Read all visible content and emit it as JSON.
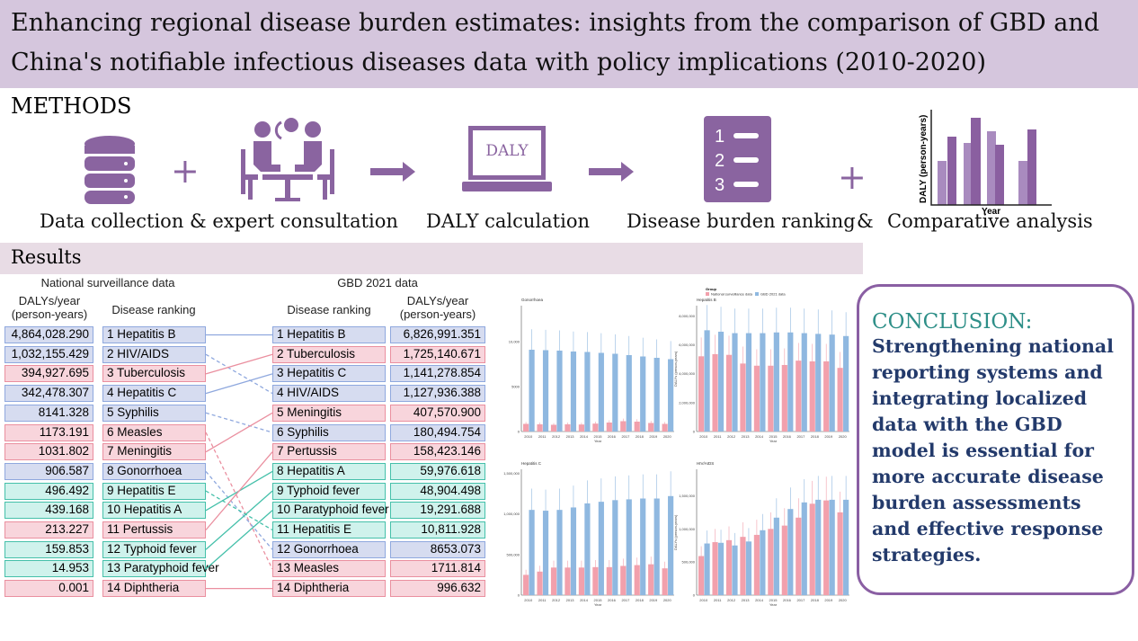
{
  "title": "Enhancing regional disease burden estimates: insights from the comparison of GBD and China's notifiable infectious diseases data with policy implications (2010-2020)",
  "methods": {
    "heading": "METHODS",
    "plus": "+",
    "amp": "&",
    "laptop_text": "DALY",
    "rank_numbers": [
      "1",
      "2",
      "3"
    ],
    "mini_chart": {
      "ylabel": "DALY (person-years)",
      "xlabel": "Year"
    },
    "steps": [
      "Data collection & expert consultation",
      "DALY calculation",
      "Disease burden ranking",
      "Comparative analysis"
    ]
  },
  "results": {
    "heading": "Results",
    "national_title": "National surveillance data",
    "gbd_title": "GBD 2021 data",
    "col_dalys": "DALYs/year",
    "col_dalys_unit": "(person-years)",
    "col_rank": "Disease ranking",
    "national": [
      {
        "rank": "1",
        "disease": "Hepatitis B",
        "value": "4,864,028.290",
        "group": "blue"
      },
      {
        "rank": "2",
        "disease": "HIV/AIDS",
        "value": "1,032,155.429",
        "group": "blue"
      },
      {
        "rank": "3",
        "disease": "Tuberculosis",
        "value": "394,927.695",
        "group": "pink"
      },
      {
        "rank": "4",
        "disease": "Hepatitis C",
        "value": "342,478.307",
        "group": "blue"
      },
      {
        "rank": "5",
        "disease": "Syphilis",
        "value": "8141.328",
        "group": "blue"
      },
      {
        "rank": "6",
        "disease": "Measles",
        "value": "1173.191",
        "group": "pink"
      },
      {
        "rank": "7",
        "disease": "Meningitis",
        "value": "1031.802",
        "group": "pink"
      },
      {
        "rank": "8",
        "disease": "Gonorrhoea",
        "value": "906.587",
        "group": "blue"
      },
      {
        "rank": "9",
        "disease": "Hepatitis E",
        "value": "496.492",
        "group": "teal"
      },
      {
        "rank": "10",
        "disease": "Hepatitis A",
        "value": "439.168",
        "group": "teal"
      },
      {
        "rank": "11",
        "disease": "Pertussis",
        "value": "213.227",
        "group": "pink"
      },
      {
        "rank": "12",
        "disease": "Typhoid fever",
        "value": "159.853",
        "group": "teal"
      },
      {
        "rank": "13",
        "disease": "Paratyphoid fever",
        "value": "14.953",
        "group": "teal"
      },
      {
        "rank": "14",
        "disease": "Diphtheria",
        "value": "0.001",
        "group": "pink"
      }
    ],
    "gbd": [
      {
        "rank": "1",
        "disease": "Hepatitis B",
        "value": "6,826,991.351",
        "group": "blue"
      },
      {
        "rank": "2",
        "disease": "Tuberculosis",
        "value": "1,725,140.671",
        "group": "pink"
      },
      {
        "rank": "3",
        "disease": "Hepatitis C",
        "value": "1,141,278.854",
        "group": "blue"
      },
      {
        "rank": "4",
        "disease": "HIV/AIDS",
        "value": "1,127,936.388",
        "group": "blue"
      },
      {
        "rank": "5",
        "disease": "Meningitis",
        "value": "407,570.900",
        "group": "pink"
      },
      {
        "rank": "6",
        "disease": "Syphilis",
        "value": "180,494.754",
        "group": "blue"
      },
      {
        "rank": "7",
        "disease": "Pertussis",
        "value": "158,423.146",
        "group": "pink"
      },
      {
        "rank": "8",
        "disease": "Hepatitis A",
        "value": "59,976.618",
        "group": "teal"
      },
      {
        "rank": "9",
        "disease": "Typhoid fever",
        "value": "48,904.498",
        "group": "teal"
      },
      {
        "rank": "10",
        "disease": "Paratyphoid fever",
        "value": "19,291.688",
        "group": "teal"
      },
      {
        "rank": "11",
        "disease": "Hepatitis E",
        "value": "10,811.928",
        "group": "teal"
      },
      {
        "rank": "12",
        "disease": "Gonorrhoea",
        "value": "8653.073",
        "group": "blue"
      },
      {
        "rank": "13",
        "disease": "Measles",
        "value": "1711.814",
        "group": "pink"
      },
      {
        "rank": "14",
        "disease": "Diphtheria",
        "value": "996.632",
        "group": "pink"
      }
    ]
  },
  "colors": {
    "blue": "#8fa8de",
    "pink": "#ea8f9f",
    "teal": "#45c0aa",
    "purple": "#8a64a0",
    "national_bar": "#f2a0ac",
    "gbd_bar": "#8fb8e0"
  },
  "chart_data": [
    {
      "type": "bar",
      "title": "Gonorrhoea",
      "xlabel": "Year",
      "ylabel": "DALYs (person-years)",
      "legend_title": "Group",
      "legend": [
        "National surveillance data",
        "GBD 2021 data"
      ],
      "legend_placement": "top-right",
      "x": [
        "2010",
        "2011",
        "2012",
        "2013",
        "2014",
        "2015",
        "2016",
        "2017",
        "2018",
        "2019",
        "2020"
      ],
      "ylim": [
        0,
        14000
      ],
      "yticks": [
        "0",
        "5000",
        "10,000"
      ],
      "ytick_values": [
        0,
        5000,
        10000
      ],
      "series": [
        {
          "name": "National surveillance data",
          "values": [
            850,
            800,
            750,
            800,
            780,
            880,
            1000,
            1150,
            1100,
            950,
            850
          ]
        },
        {
          "name": "GBD 2021 data",
          "values": [
            9100,
            9050,
            9000,
            8900,
            8850,
            8750,
            8650,
            8500,
            8350,
            8200,
            8050
          ]
        }
      ]
    },
    {
      "type": "bar",
      "title": "Hepatitis B",
      "xlabel": "Year",
      "ylabel": "DALYs (person-years)",
      "x": [
        "2010",
        "2011",
        "2012",
        "2013",
        "2014",
        "2015",
        "2016",
        "2017",
        "2018",
        "2019",
        "2020"
      ],
      "ylim": [
        0,
        8700000
      ],
      "yticks": [
        "0",
        "2,000,000",
        "4,000,000",
        "6,000,000",
        "8,000,000"
      ],
      "ytick_values": [
        0,
        2000000,
        4000000,
        6000000,
        8000000
      ],
      "series": [
        {
          "name": "National surveillance data",
          "values": [
            5200000,
            5350000,
            5300000,
            4700000,
            4550000,
            4550000,
            4600000,
            4900000,
            4850000,
            4850000,
            4400000
          ]
        },
        {
          "name": "GBD 2021 data",
          "values": [
            7000000,
            6900000,
            6800000,
            6800000,
            6800000,
            6850000,
            6850000,
            6800000,
            6750000,
            6700000,
            6600000
          ]
        }
      ]
    },
    {
      "type": "bar",
      "title": "Hepatitis C",
      "xlabel": "Year",
      "ylabel": "DALYs (person-years)",
      "x": [
        "2010",
        "2011",
        "2012",
        "2013",
        "2014",
        "2015",
        "2016",
        "2017",
        "2018",
        "2019",
        "2020"
      ],
      "ylim": [
        0,
        1550000
      ],
      "yticks": [
        "0",
        "500,000",
        "1,000,000",
        "1,500,000"
      ],
      "ytick_values": [
        0,
        500000,
        1000000,
        1500000
      ],
      "series": [
        {
          "name": "National surveillance data",
          "values": [
            250000,
            290000,
            340000,
            340000,
            340000,
            345000,
            345000,
            360000,
            370000,
            380000,
            330000
          ]
        },
        {
          "name": "GBD 2021 data",
          "values": [
            1050000,
            1040000,
            1050000,
            1080000,
            1130000,
            1150000,
            1170000,
            1180000,
            1190000,
            1190000,
            1220000
          ]
        }
      ]
    },
    {
      "type": "bar",
      "title": "HIV/AIDS",
      "xlabel": "Year",
      "ylabel": "DALYs (person-years)",
      "x": [
        "2010",
        "2011",
        "2012",
        "2013",
        "2014",
        "2015",
        "2016",
        "2017",
        "2018",
        "2019",
        "2020"
      ],
      "ylim": [
        0,
        1900000
      ],
      "yticks": [
        "0",
        "500,000",
        "1,000,000",
        "1,500,000"
      ],
      "ytick_values": [
        0,
        500000,
        1000000,
        1500000
      ],
      "series": [
        {
          "name": "National surveillance data",
          "values": [
            590000,
            800000,
            830000,
            880000,
            910000,
            1000000,
            1050000,
            1170000,
            1380000,
            1430000,
            1250000
          ]
        },
        {
          "name": "GBD 2021 data",
          "values": [
            780000,
            790000,
            750000,
            810000,
            980000,
            1170000,
            1300000,
            1400000,
            1440000,
            1440000,
            1440000
          ]
        }
      ]
    }
  ],
  "conclusion": {
    "title": "CONCLUSION:",
    "text": "Strengthening national reporting systems and integrating localized data with the GBD model is essential for more accurate disease burden assessments and effective response strategies."
  }
}
